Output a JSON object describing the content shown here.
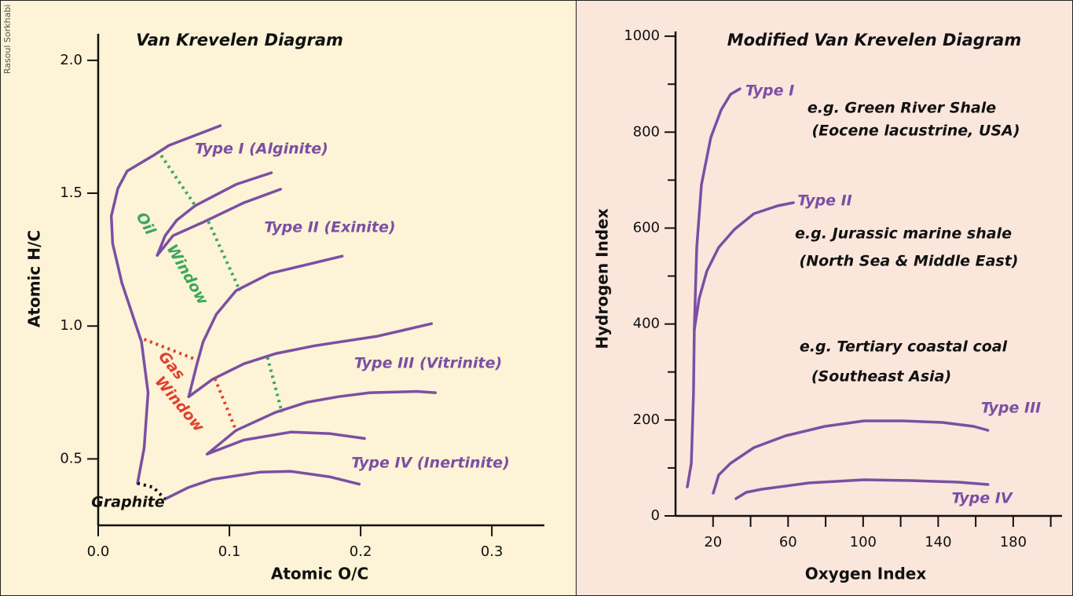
{
  "credit": "Rasoul Sorkhabi",
  "chart_data": [
    {
      "type": "line",
      "title": "Van Krevelen Diagram",
      "x_label": "Atomic O/C",
      "y_label": "Atomic H/C",
      "xlim": [
        0,
        0.34
      ],
      "ylim": [
        0.25,
        2.1
      ],
      "xticks": [
        {
          "value": 0,
          "label": "0.0"
        },
        0.1,
        0.2,
        0.3
      ],
      "yticks": [
        {
          "value": 0.5,
          "label": "0.5"
        },
        {
          "value": 1,
          "label": "1.0"
        },
        1.5,
        {
          "value": 2,
          "label": "2.0"
        }
      ],
      "annotations": [
        "Type I (Alginite)",
        "Type II (Exinite)",
        "Type III (Vitrinite)",
        "Type IV (Inertinite)",
        "Oil",
        "Window",
        "Gas",
        "Window",
        "Graphite"
      ],
      "series": [
        {
          "color": "#7b4fa3",
          "style": "solid",
          "x": [
            0.03,
            0.035,
            0.038,
            0.033,
            0.018,
            0.011,
            0.01,
            0.015,
            0.022,
            0.042,
            0.054,
            0.093
          ],
          "values": [
            0.408,
            0.541,
            0.749,
            0.941,
            1.163,
            1.311,
            1.414,
            1.518,
            1.583,
            1.642,
            1.68,
            1.754
          ]
        },
        {
          "color": "#7b4fa3",
          "style": "solid",
          "x": [
            0.045,
            0.051,
            0.06,
            0.074,
            0.105,
            0.132
          ],
          "values": [
            1.266,
            1.34,
            1.399,
            1.453,
            1.533,
            1.577
          ]
        },
        {
          "color": "#7b4fa3",
          "style": "solid",
          "x": [
            0.045,
            0.057,
            0.081,
            0.111,
            0.139
          ],
          "values": [
            1.266,
            1.34,
            1.393,
            1.464,
            1.515
          ]
        },
        {
          "color": "#7b4fa3",
          "style": "solid",
          "x": [
            0.069,
            0.075,
            0.08,
            0.09,
            0.105,
            0.131,
            0.186
          ],
          "values": [
            0.734,
            0.852,
            0.941,
            1.044,
            1.133,
            1.198,
            1.263
          ]
        },
        {
          "color": "#7b4fa3",
          "style": "solid",
          "x": [
            0.069,
            0.087,
            0.111,
            0.135,
            0.165,
            0.213,
            0.254
          ],
          "values": [
            0.734,
            0.799,
            0.858,
            0.896,
            0.926,
            0.962,
            1.009
          ]
        },
        {
          "color": "#7b4fa3",
          "style": "solid",
          "x": [
            0.083,
            0.105,
            0.135,
            0.159,
            0.183,
            0.207,
            0.243,
            0.257
          ],
          "values": [
            0.518,
            0.607,
            0.675,
            0.713,
            0.734,
            0.749,
            0.754,
            0.749
          ]
        },
        {
          "color": "#7b4fa3",
          "style": "solid",
          "x": [
            0.083,
            0.111,
            0.147,
            0.177,
            0.203
          ],
          "values": [
            0.518,
            0.571,
            0.601,
            0.595,
            0.577
          ]
        },
        {
          "color": "#7b4fa3",
          "style": "solid",
          "x": [
            0.051,
            0.069,
            0.087,
            0.123,
            0.147,
            0.177,
            0.199
          ],
          "values": [
            0.349,
            0.393,
            0.423,
            0.45,
            0.453,
            0.432,
            0.405
          ]
        },
        {
          "color": "#111111",
          "style": "dotted",
          "x": [
            0.03,
            0.042,
            0.051
          ],
          "values": [
            0.408,
            0.393,
            0.349
          ]
        },
        {
          "color": "#3aa85a",
          "style": "dotted",
          "x": [
            0.048,
            0.074
          ],
          "values": [
            1.642,
            1.453
          ]
        },
        {
          "color": "#3aa85a",
          "style": "dotted",
          "x": [
            0.084,
            0.108
          ],
          "values": [
            1.393,
            1.133
          ]
        },
        {
          "color": "#3aa85a",
          "style": "dotted",
          "x": [
            0.129,
            0.14
          ],
          "values": [
            0.882,
            0.675
          ]
        },
        {
          "color": "#e0402e",
          "style": "dotted",
          "x": [
            0.035,
            0.075
          ],
          "values": [
            0.95,
            0.873
          ]
        },
        {
          "color": "#e0402e",
          "style": "dotted",
          "x": [
            0.089,
            0.105
          ],
          "values": [
            0.802,
            0.607
          ]
        }
      ]
    },
    {
      "type": "line",
      "title": "Modified Van Krevelen Diagram",
      "x_label": "Oxygen Index",
      "y_label": "Hydrogen Index",
      "xlim": [
        0,
        206
      ],
      "ylim": [
        0,
        1010
      ],
      "xticks": [
        20,
        60,
        100,
        140,
        180
      ],
      "xticks_minor": [
        40,
        80,
        120,
        160,
        200
      ],
      "yticks": [
        0,
        200,
        400,
        600,
        800,
        1000
      ],
      "yticks_minor": [
        100,
        300,
        500,
        700,
        900
      ],
      "annotations": [
        "Type I",
        "e.g. Green River Shale",
        "(Eocene lacustrine, USA)",
        "Type II",
        "e.g. Jurassic marine shale",
        "(North Sea & Middle East)",
        "e.g. Tertiary coastal coal",
        "(Southeast Asia)",
        "Type III",
        "Type IV"
      ],
      "series": [
        {
          "color": "#7b4fa3",
          "style": "solid",
          "x": [
            6.3,
            8.4,
            9.6,
            10.0,
            11.3,
            13.8,
            18.8,
            24.3,
            29.3,
            34.3
          ],
          "values": [
            60.6,
            109.7,
            256.9,
            387.9,
            559.7,
            690.7,
            788.9,
            846.2,
            878.9,
            890.3
          ]
        },
        {
          "color": "#7b4fa3",
          "style": "solid",
          "x": [
            10.0,
            12.6,
            16.7,
            23.0,
            31.4,
            41.8,
            54.4,
            62.8
          ],
          "values": [
            387.9,
            453.4,
            510.6,
            559.7,
            597.4,
            630.1,
            646.5,
            653.0
          ]
        },
        {
          "color": "#7b4fa3",
          "style": "solid",
          "x": [
            20.1,
            23.0,
            29.3,
            41.8,
            58.6,
            79.5,
            100.4,
            121.3,
            142.3,
            159.0,
            166.5
          ],
          "values": [
            47.5,
            85.1,
            109.7,
            142.4,
            166.9,
            186.6,
            198.0,
            198.0,
            194.8,
            186.6,
            178.4
          ]
        },
        {
          "color": "#7b4fa3",
          "style": "solid",
          "x": [
            32.2,
            37.7,
            46.0,
            71.1,
            100.4,
            125.5,
            150.6,
            166.5
          ],
          "values": [
            36.0,
            49.1,
            55.6,
            68.7,
            75.3,
            73.6,
            70.4,
            65.5
          ]
        }
      ]
    }
  ]
}
